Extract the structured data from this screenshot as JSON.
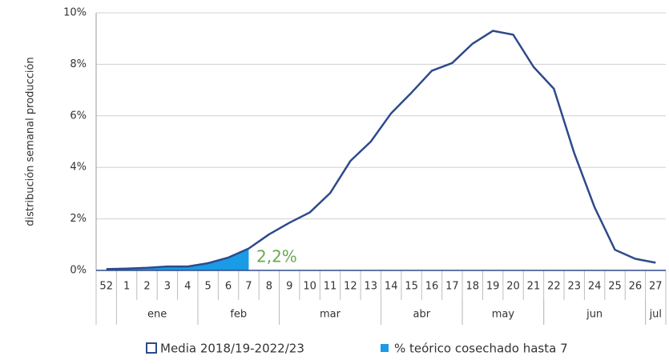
{
  "chart_data": {
    "type": "line",
    "y_label": "distribución semanal producción",
    "categories": [
      "52",
      "1",
      "2",
      "3",
      "4",
      "5",
      "6",
      "7",
      "8",
      "9",
      "10",
      "11",
      "12",
      "13",
      "14",
      "15",
      "16",
      "17",
      "18",
      "19",
      "20",
      "21",
      "22",
      "23",
      "24",
      "25",
      "26",
      "27"
    ],
    "month_groups": [
      {
        "label": "ene",
        "from": 1,
        "to": 4
      },
      {
        "label": "feb",
        "from": 5,
        "to": 8
      },
      {
        "label": "mar",
        "from": 9,
        "to": 13
      },
      {
        "label": "abr",
        "from": 14,
        "to": 17
      },
      {
        "label": "may",
        "from": 18,
        "to": 21
      },
      {
        "label": "jun",
        "from": 22,
        "to": 26
      },
      {
        "label": "jul",
        "from": 27,
        "to": 27
      }
    ],
    "series": [
      {
        "name": "Media 2018/19-2022/23",
        "color": "#2e4a8b",
        "values": [
          0.05,
          0.07,
          0.1,
          0.15,
          0.15,
          0.28,
          0.5,
          0.85,
          1.4,
          1.85,
          2.25,
          3.0,
          4.25,
          5.0,
          6.1,
          6.9,
          7.75,
          8.05,
          8.8,
          9.3,
          9.15,
          7.9,
          7.05,
          4.55,
          2.45,
          0.8,
          0.45,
          0.3
        ]
      },
      {
        "name": "% teórico cosechado hasta 7",
        "color": "#1a9be6",
        "kind": "area",
        "values": [
          0.05,
          0.07,
          0.1,
          0.15,
          0.15,
          0.28,
          0.5,
          0.85,
          null,
          null,
          null,
          null,
          null,
          null,
          null,
          null,
          null,
          null,
          null,
          null,
          null,
          null,
          null,
          null,
          null,
          null,
          null,
          null
        ]
      }
    ],
    "annotation": "2,2%",
    "annotation_color": "#6aa84f",
    "ylim": [
      0,
      10
    ],
    "yticks": [
      {
        "value": 0,
        "label": "0%"
      },
      {
        "value": 2,
        "label": "2%"
      },
      {
        "value": 4,
        "label": "4%"
      },
      {
        "value": 6,
        "label": "6%"
      },
      {
        "value": 8,
        "label": "8%"
      },
      {
        "value": 10,
        "label": "10%"
      }
    ],
    "grid": true
  }
}
